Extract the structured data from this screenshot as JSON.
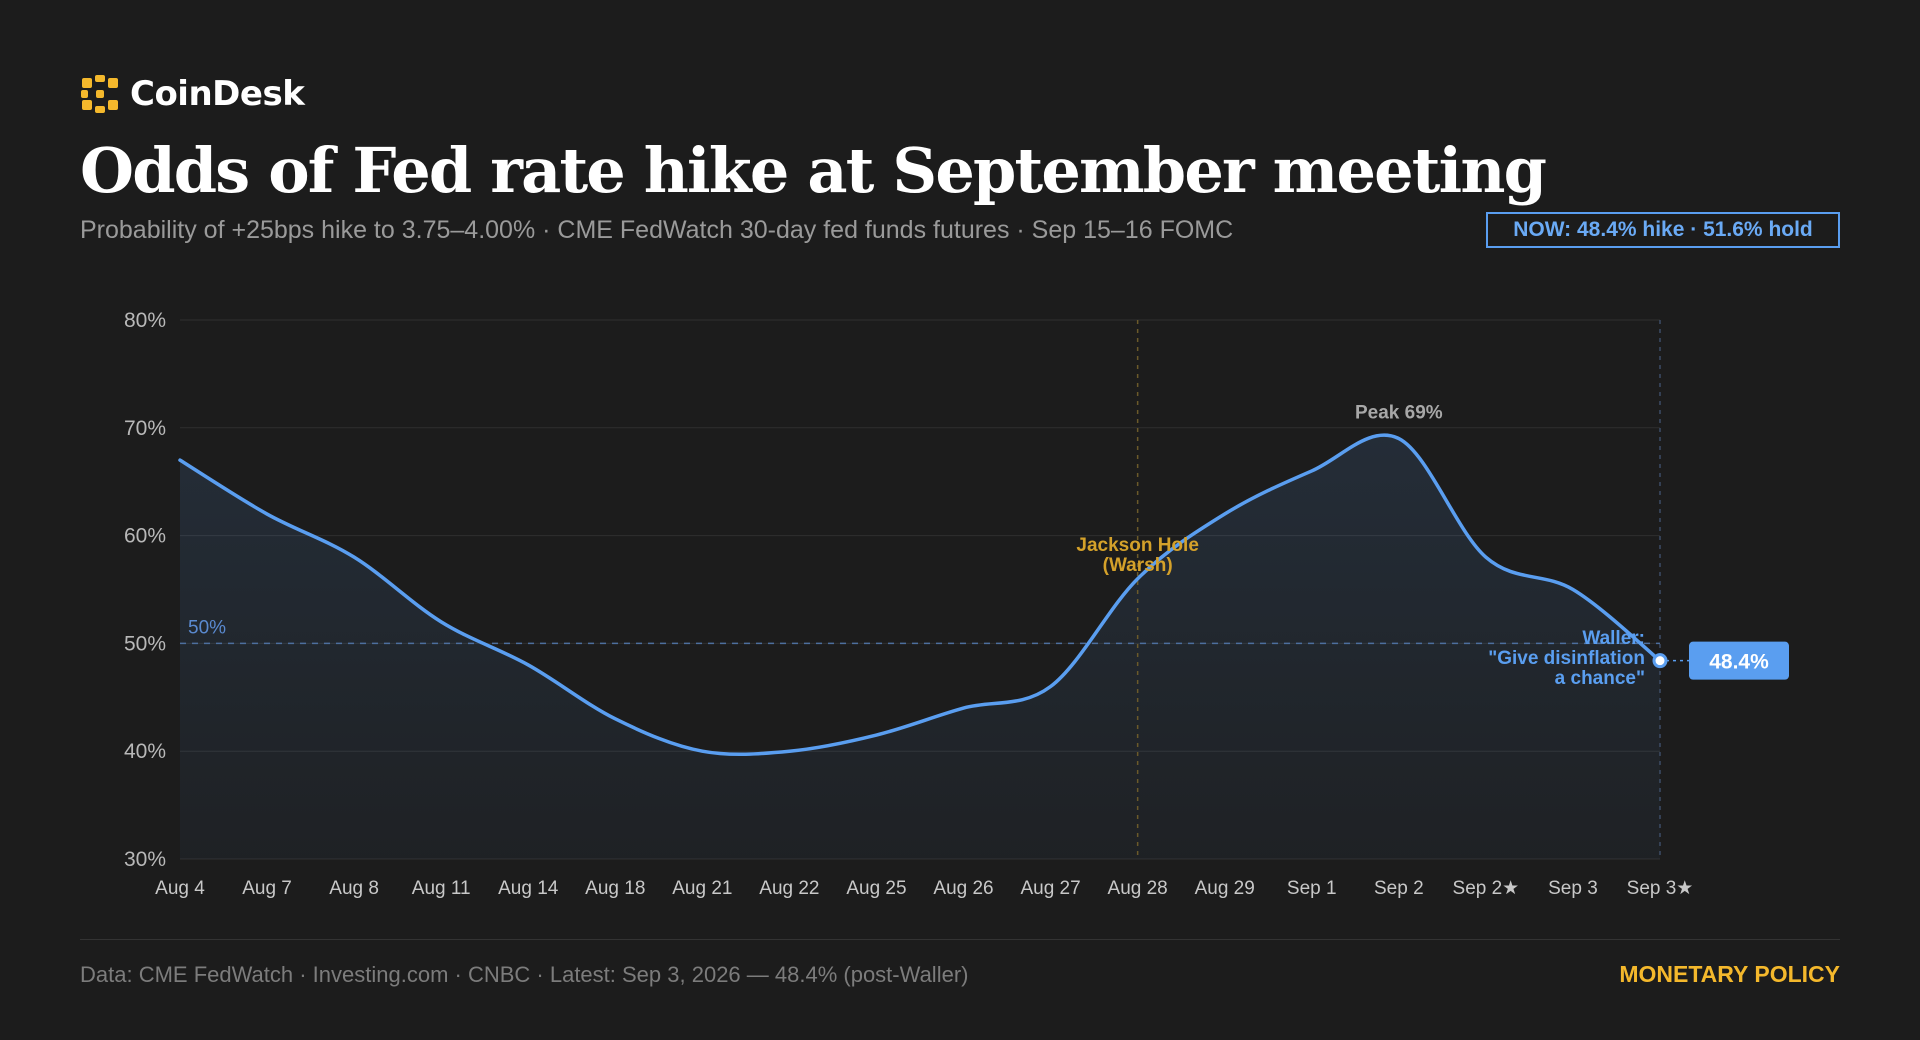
{
  "brand": {
    "name": "CoinDesk",
    "icon": "coindesk-logo-icon",
    "color": "#f4b82c"
  },
  "header": {
    "title": "Odds of Fed rate hike at September meeting",
    "subtitle": "Probability of +25bps hike to 3.75–4.00% · CME FedWatch 30-day fed funds futures · Sep 15–16 FOMC",
    "now_badge": "NOW: 48.4% hike · 51.6% hold"
  },
  "chart_data": {
    "type": "area",
    "x": [
      "Aug 4",
      "Aug 7",
      "Aug 8",
      "Aug 11",
      "Aug 14",
      "Aug 18",
      "Aug 21",
      "Aug 22",
      "Aug 25",
      "Aug 26",
      "Aug 27",
      "Aug 28",
      "Aug 29",
      "Sep 1",
      "Sep 2",
      "Sep 2★",
      "Sep 3",
      "Sep 3★"
    ],
    "series": [
      {
        "values": [
          67,
          62,
          58,
          52,
          48,
          43,
          40,
          40,
          41.5,
          44,
          46,
          56,
          62,
          66,
          69,
          58,
          55,
          48.4
        ],
        "color": "#5a9ef0"
      }
    ],
    "yticks": [
      "30%",
      "40%",
      "50%",
      "60%",
      "70%",
      "80%"
    ],
    "ylim": [
      30,
      80
    ],
    "grid": true,
    "reference_line": {
      "value": 50,
      "label": "50%"
    },
    "event_line": {
      "x": "Aug 28",
      "label_lines": [
        "Jackson Hole",
        "(Warsh)"
      ],
      "color": "#d4a12a"
    },
    "peak_label": {
      "x": "Sep 2",
      "value": 69,
      "text": "Peak 69%"
    },
    "end_annotation": {
      "label_lines": [
        "Waller:",
        "\"Give disinflation",
        "a chance\""
      ],
      "value_label": "48.4%"
    }
  },
  "footer": {
    "source": "Data: CME FedWatch · Investing.com · CNBC · Latest: Sep 3, 2026 — 48.4% (post-Waller)",
    "category": "MONETARY POLICY"
  }
}
